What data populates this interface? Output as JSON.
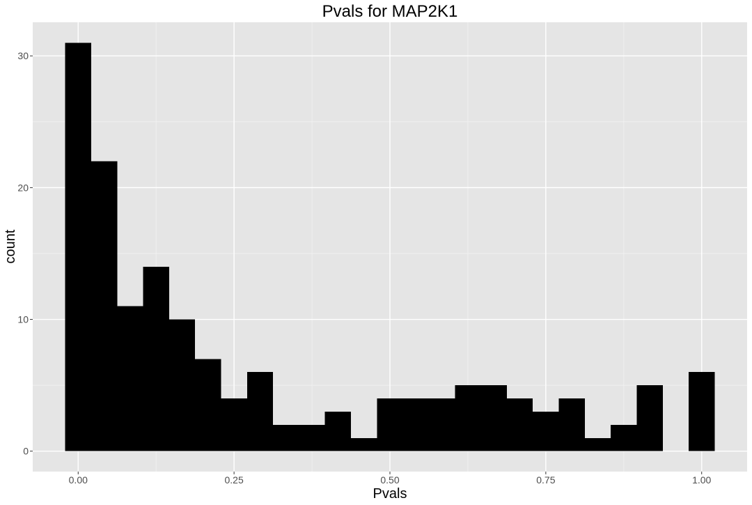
{
  "chart_data": {
    "type": "bar",
    "title": "Pvals for MAP2K1",
    "xlabel": "Pvals",
    "ylabel": "count",
    "bin_width": 0.0417,
    "bins": [
      {
        "x": 0.0,
        "count": 31
      },
      {
        "x": 0.0417,
        "count": 22
      },
      {
        "x": 0.0833,
        "count": 11
      },
      {
        "x": 0.125,
        "count": 14
      },
      {
        "x": 0.1667,
        "count": 10
      },
      {
        "x": 0.2083,
        "count": 7
      },
      {
        "x": 0.25,
        "count": 4
      },
      {
        "x": 0.2917,
        "count": 6
      },
      {
        "x": 0.3333,
        "count": 2
      },
      {
        "x": 0.375,
        "count": 2
      },
      {
        "x": 0.4167,
        "count": 3
      },
      {
        "x": 0.4583,
        "count": 1
      },
      {
        "x": 0.5,
        "count": 4
      },
      {
        "x": 0.5417,
        "count": 4
      },
      {
        "x": 0.5833,
        "count": 4
      },
      {
        "x": 0.625,
        "count": 5
      },
      {
        "x": 0.6667,
        "count": 5
      },
      {
        "x": 0.7083,
        "count": 4
      },
      {
        "x": 0.75,
        "count": 3
      },
      {
        "x": 0.7917,
        "count": 4
      },
      {
        "x": 0.8333,
        "count": 1
      },
      {
        "x": 0.875,
        "count": 2
      },
      {
        "x": 0.9167,
        "count": 5
      },
      {
        "x": 0.9583,
        "count": 0
      },
      {
        "x": 1.0,
        "count": 6
      }
    ],
    "x_ticks": [
      {
        "value": 0.0,
        "label": "0.00"
      },
      {
        "value": 0.25,
        "label": "0.25"
      },
      {
        "value": 0.5,
        "label": "0.50"
      },
      {
        "value": 0.75,
        "label": "0.75"
      },
      {
        "value": 1.0,
        "label": "1.00"
      }
    ],
    "y_ticks": [
      {
        "value": 0,
        "label": "0"
      },
      {
        "value": 10,
        "label": "10"
      },
      {
        "value": 20,
        "label": "20"
      },
      {
        "value": 30,
        "label": "30"
      }
    ],
    "xlim": [
      -0.0729,
      1.0729
    ],
    "ylim": [
      -1.55,
      32.55
    ],
    "grid": true,
    "colors": {
      "panel_background": "#e5e5e5",
      "grid_major": "#ffffff",
      "grid_minor": "#f2f2f2",
      "bar_fill": "#000000",
      "tick_label": "#4d4d4d",
      "tick_mark": "#333333"
    }
  }
}
